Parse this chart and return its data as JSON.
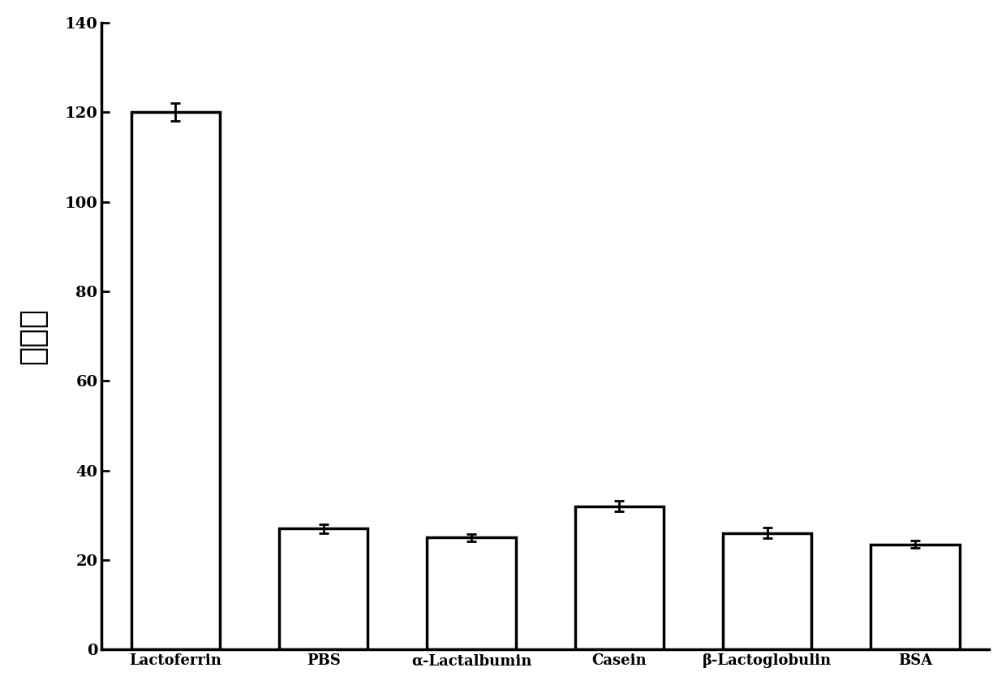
{
  "categories": [
    "Lactoferrin",
    "PBS",
    "α-Lactalbumin",
    "Casein",
    "β-Lactoglobulin",
    "BSA"
  ],
  "values": [
    120,
    27,
    25,
    32,
    26,
    23.5
  ],
  "errors": [
    2.0,
    1.0,
    0.8,
    1.2,
    1.2,
    0.8
  ],
  "bar_color": "#ffffff",
  "bar_edgecolor": "#000000",
  "error_color": "#000000",
  "ylabel": "极化率",
  "ylim": [
    0,
    140
  ],
  "yticks": [
    0,
    20,
    40,
    60,
    80,
    100,
    120,
    140
  ],
  "bar_width": 0.6,
  "spine_linewidth": 2.5,
  "bar_linewidth": 2.5,
  "capsize": 4,
  "tick_fontsize": 14,
  "ylabel_fontsize": 28,
  "xtick_fontsize": 13,
  "background_color": "#ffffff"
}
